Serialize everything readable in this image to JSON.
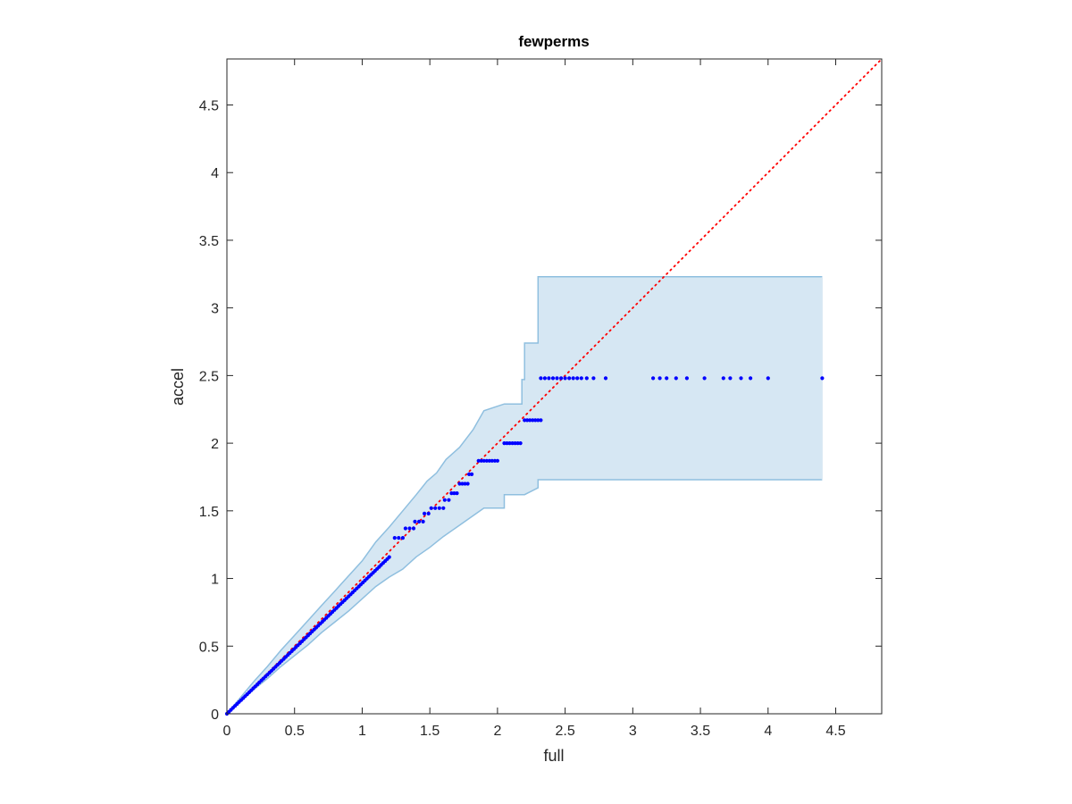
{
  "chart_data": {
    "type": "scatter",
    "title": "fewperms",
    "xlabel": "full",
    "ylabel": "accel",
    "xlim": [
      0,
      4.84
    ],
    "ylim": [
      0,
      4.84
    ],
    "xticks": [
      0,
      0.5,
      1,
      1.5,
      2,
      2.5,
      3,
      3.5,
      4,
      4.5
    ],
    "yticks": [
      0,
      0.5,
      1,
      1.5,
      2,
      2.5,
      3,
      3.5,
      4,
      4.5
    ],
    "xtick_labels": [
      "0",
      "0.5",
      "1",
      "1.5",
      "2",
      "2.5",
      "3",
      "3.5",
      "4",
      "4.5"
    ],
    "ytick_labels": [
      "0",
      "0.5",
      "1",
      "1.5",
      "2",
      "2.5",
      "3",
      "3.5",
      "4",
      "4.5"
    ],
    "grid": false,
    "box": true,
    "reference_line": {
      "from": [
        0,
        0
      ],
      "to": [
        4.84,
        4.84
      ],
      "style": "dotted",
      "color": "#ff0000"
    },
    "band": {
      "color": "#d6e7f3",
      "edge_color": "#8fbfdf",
      "upper": [
        [
          0,
          0
        ],
        [
          0.1,
          0.12
        ],
        [
          0.2,
          0.24
        ],
        [
          0.3,
          0.35
        ],
        [
          0.4,
          0.47
        ],
        [
          0.5,
          0.58
        ],
        [
          0.6,
          0.69
        ],
        [
          0.7,
          0.8
        ],
        [
          0.8,
          0.91
        ],
        [
          0.9,
          1.02
        ],
        [
          1.0,
          1.13
        ],
        [
          1.05,
          1.2
        ],
        [
          1.1,
          1.27
        ],
        [
          1.2,
          1.38
        ],
        [
          1.3,
          1.5
        ],
        [
          1.4,
          1.62
        ],
        [
          1.48,
          1.72
        ],
        [
          1.55,
          1.78
        ],
        [
          1.62,
          1.88
        ],
        [
          1.72,
          1.97
        ],
        [
          1.82,
          2.1
        ],
        [
          1.9,
          2.24
        ],
        [
          2.05,
          2.29
        ],
        [
          2.18,
          2.29
        ],
        [
          2.18,
          2.47
        ],
        [
          2.2,
          2.47
        ],
        [
          2.2,
          2.74
        ],
        [
          2.3,
          2.74
        ],
        [
          2.3,
          3.23
        ],
        [
          4.4,
          3.23
        ]
      ],
      "lower": [
        [
          0,
          0
        ],
        [
          0.1,
          0.09
        ],
        [
          0.2,
          0.18
        ],
        [
          0.3,
          0.26
        ],
        [
          0.4,
          0.35
        ],
        [
          0.5,
          0.43
        ],
        [
          0.6,
          0.51
        ],
        [
          0.7,
          0.6
        ],
        [
          0.8,
          0.68
        ],
        [
          0.9,
          0.76
        ],
        [
          1.0,
          0.85
        ],
        [
          1.1,
          0.94
        ],
        [
          1.2,
          1.01
        ],
        [
          1.3,
          1.07
        ],
        [
          1.4,
          1.16
        ],
        [
          1.5,
          1.23
        ],
        [
          1.6,
          1.31
        ],
        [
          1.7,
          1.38
        ],
        [
          1.8,
          1.45
        ],
        [
          1.9,
          1.52
        ],
        [
          2.05,
          1.52
        ],
        [
          2.05,
          1.62
        ],
        [
          2.2,
          1.62
        ],
        [
          2.3,
          1.67
        ],
        [
          2.3,
          1.73
        ],
        [
          4.4,
          1.73
        ]
      ]
    },
    "series": [
      {
        "marker_color": "#0000ff",
        "diagonal_run": {
          "from": 0,
          "to": 1.2,
          "step": 0.015
        },
        "steps": [
          {
            "y": 1.3,
            "x": [
              1.24,
              1.27,
              1.3
            ]
          },
          {
            "y": 1.37,
            "x": [
              1.32,
              1.35,
              1.38
            ]
          },
          {
            "y": 1.42,
            "x": [
              1.39,
              1.42,
              1.45
            ]
          },
          {
            "y": 1.48,
            "x": [
              1.46,
              1.49
            ]
          },
          {
            "y": 1.52,
            "x": [
              1.51,
              1.54,
              1.57,
              1.6
            ]
          },
          {
            "y": 1.58,
            "x": [
              1.61,
              1.64
            ]
          },
          {
            "y": 1.63,
            "x": [
              1.66,
              1.68,
              1.7
            ]
          },
          {
            "y": 1.7,
            "x": [
              1.72,
              1.74,
              1.76,
              1.78
            ]
          },
          {
            "y": 1.77,
            "x": [
              1.79,
              1.81
            ]
          },
          {
            "y": 1.87,
            "x": [
              1.86,
              1.88,
              1.9,
              1.92,
              1.94,
              1.96,
              1.98,
              2.0
            ]
          },
          {
            "y": 2.0,
            "x": [
              2.05,
              2.07,
              2.09,
              2.11,
              2.13,
              2.15,
              2.17
            ]
          },
          {
            "y": 2.17,
            "x": [
              2.2,
              2.22,
              2.24,
              2.26,
              2.28,
              2.3,
              2.32
            ]
          },
          {
            "y": 2.48,
            "x": [
              2.32,
              2.35,
              2.38,
              2.41,
              2.44,
              2.47,
              2.5,
              2.53,
              2.56,
              2.59,
              2.62,
              2.66,
              2.71,
              2.8,
              3.15,
              3.2,
              3.25,
              3.32,
              3.4,
              3.53,
              3.67,
              3.72,
              3.8,
              3.87,
              4.0,
              4.4
            ]
          }
        ]
      }
    ]
  }
}
